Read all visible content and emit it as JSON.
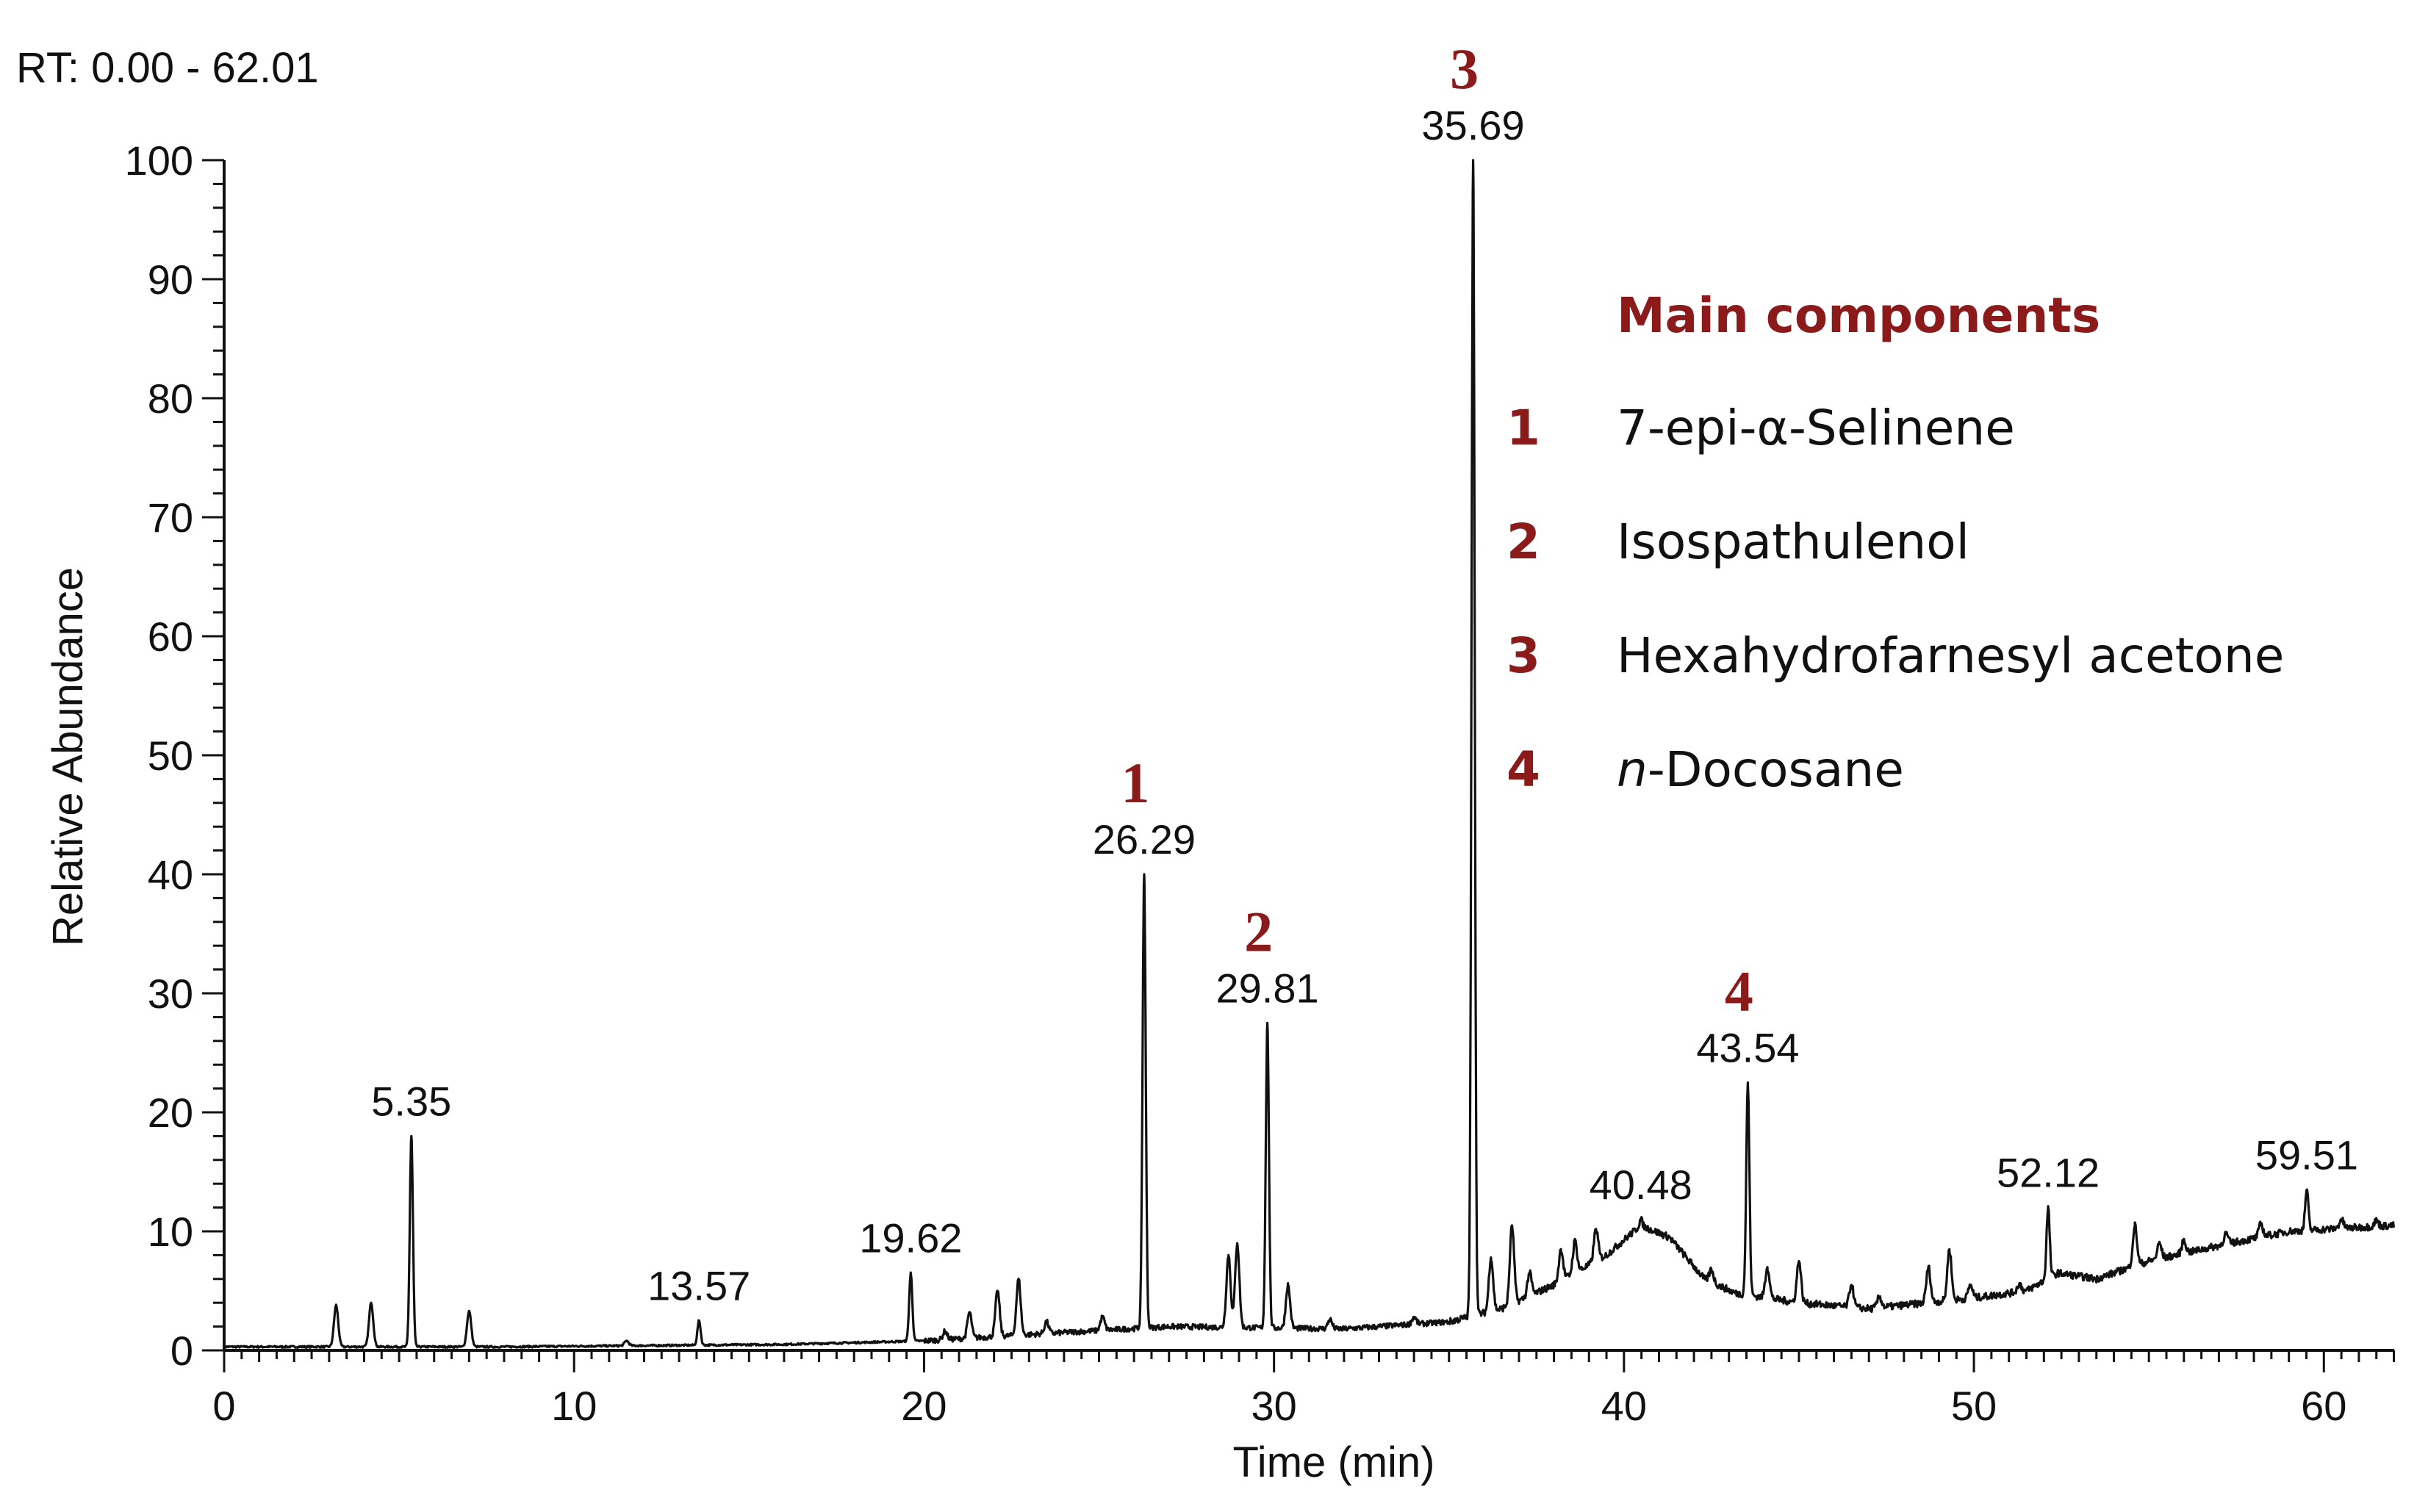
{
  "chart_data": {
    "type": "line",
    "range_label": "RT: 0.00 - 62.01",
    "xlabel": "Time (min)",
    "ylabel": "Relative Abundance",
    "xlim": [
      0,
      62.01
    ],
    "ylim": [
      0,
      100
    ],
    "x_ticks": [
      0,
      10,
      20,
      30,
      40,
      50,
      60
    ],
    "y_ticks": [
      0,
      10,
      20,
      30,
      40,
      50,
      60,
      70,
      80,
      90,
      100
    ],
    "grid": false,
    "colors": {
      "trace": "#111111",
      "accent": "#8b1a1a"
    },
    "peaks": [
      {
        "rt": 5.35,
        "label": "5.35",
        "abundance": 18,
        "marker": ""
      },
      {
        "rt": 13.57,
        "label": "13.57",
        "abundance": 2.5,
        "marker": ""
      },
      {
        "rt": 19.62,
        "label": "19.62",
        "abundance": 6.5,
        "marker": ""
      },
      {
        "rt": 26.29,
        "label": "26.29",
        "abundance": 40,
        "marker": "1"
      },
      {
        "rt": 29.81,
        "label": "29.81",
        "abundance": 27.5,
        "marker": "2"
      },
      {
        "rt": 35.69,
        "label": "35.69",
        "abundance": 100,
        "marker": "3"
      },
      {
        "rt": 40.48,
        "label": "40.48",
        "abundance": 11,
        "marker": ""
      },
      {
        "rt": 43.54,
        "label": "43.54",
        "abundance": 22.5,
        "marker": "4"
      },
      {
        "rt": 52.12,
        "label": "52.12",
        "abundance": 12,
        "marker": ""
      },
      {
        "rt": 59.51,
        "label": "59.51",
        "abundance": 13.5,
        "marker": ""
      }
    ],
    "minor_peaks": [
      {
        "rt": 3.2,
        "abundance": 3.8
      },
      {
        "rt": 4.2,
        "abundance": 4.0
      },
      {
        "rt": 7.0,
        "abundance": 3.3
      },
      {
        "rt": 11.5,
        "abundance": 0.8
      },
      {
        "rt": 20.6,
        "abundance": 1.6
      },
      {
        "rt": 21.3,
        "abundance": 3.2
      },
      {
        "rt": 22.1,
        "abundance": 5.0
      },
      {
        "rt": 22.7,
        "abundance": 6.0
      },
      {
        "rt": 23.5,
        "abundance": 2.4
      },
      {
        "rt": 25.1,
        "abundance": 2.8
      },
      {
        "rt": 28.7,
        "abundance": 8.0
      },
      {
        "rt": 28.95,
        "abundance": 9.0
      },
      {
        "rt": 30.4,
        "abundance": 5.5
      },
      {
        "rt": 31.6,
        "abundance": 2.6
      },
      {
        "rt": 34.0,
        "abundance": 2.8
      },
      {
        "rt": 36.2,
        "abundance": 7.8
      },
      {
        "rt": 36.8,
        "abundance": 10.5
      },
      {
        "rt": 37.3,
        "abundance": 6.5
      },
      {
        "rt": 38.2,
        "abundance": 8.5
      },
      {
        "rt": 38.6,
        "abundance": 9.2
      },
      {
        "rt": 39.2,
        "abundance": 10.2
      },
      {
        "rt": 42.5,
        "abundance": 6.8
      },
      {
        "rt": 44.1,
        "abundance": 7.0
      },
      {
        "rt": 45.0,
        "abundance": 7.5
      },
      {
        "rt": 46.5,
        "abundance": 5.5
      },
      {
        "rt": 47.3,
        "abundance": 4.5
      },
      {
        "rt": 48.7,
        "abundance": 7.0
      },
      {
        "rt": 49.3,
        "abundance": 8.5
      },
      {
        "rt": 49.9,
        "abundance": 5.5
      },
      {
        "rt": 51.3,
        "abundance": 5.6
      },
      {
        "rt": 54.6,
        "abundance": 10.5
      },
      {
        "rt": 55.3,
        "abundance": 9.0
      },
      {
        "rt": 56.0,
        "abundance": 9.2
      },
      {
        "rt": 57.2,
        "abundance": 9.8
      },
      {
        "rt": 58.2,
        "abundance": 10.6
      },
      {
        "rt": 60.5,
        "abundance": 11.0
      },
      {
        "rt": 61.5,
        "abundance": 10.9
      }
    ],
    "baseline": [
      [
        0,
        0.3
      ],
      [
        8,
        0.3
      ],
      [
        16,
        0.5
      ],
      [
        20,
        0.8
      ],
      [
        24,
        1.5
      ],
      [
        27,
        2.0
      ],
      [
        32,
        1.8
      ],
      [
        35,
        2.4
      ],
      [
        36.5,
        3.5
      ],
      [
        38,
        5.5
      ],
      [
        39.5,
        8.0
      ],
      [
        40.48,
        10.5
      ],
      [
        41.3,
        9.5
      ],
      [
        42.3,
        6.0
      ],
      [
        43.2,
        4.8
      ],
      [
        45,
        4.0
      ],
      [
        47,
        3.5
      ],
      [
        50,
        4.4
      ],
      [
        51.5,
        5.0
      ],
      [
        52.4,
        6.5
      ],
      [
        53.5,
        6.0
      ],
      [
        55,
        7.5
      ],
      [
        57,
        8.8
      ],
      [
        59,
        10.0
      ],
      [
        62.01,
        10.5
      ]
    ]
  },
  "legend": {
    "title": "Main components",
    "items": [
      {
        "num": "1",
        "name": "7-epi-α-Selinene"
      },
      {
        "num": "2",
        "name": "Isospathulenol"
      },
      {
        "num": "3",
        "name": "Hexahydrofarnesyl acetone"
      },
      {
        "num": "4_prefix",
        "name": ""
      }
    ],
    "item4": {
      "num": "4",
      "prefix": "n",
      "rest": "-Docosane"
    }
  }
}
